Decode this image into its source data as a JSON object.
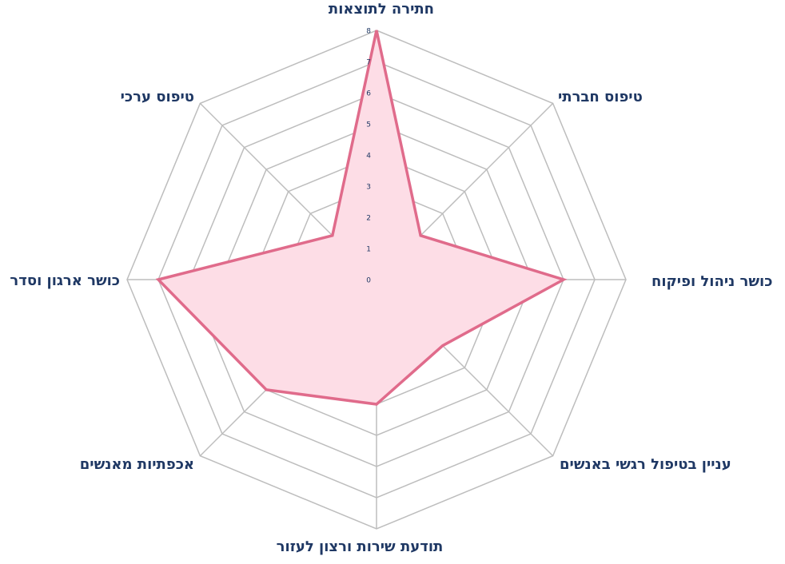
{
  "chart_data": {
    "type": "radar",
    "categories": [
      "חתירה לתוצאות",
      "טיפוס חברתי",
      "כושר ניהול ופיקוח",
      "עניין בטיפול רגשי באנשים",
      "תודעת שירות ורצון לעזור",
      "אכפתיות מאנשים",
      "כושר ארגון וסדר",
      "טיפוס ערכי"
    ],
    "values": [
      8,
      2,
      6,
      3,
      4,
      5,
      7,
      2
    ],
    "color": "#e06b8b",
    "fill": "#fddde6",
    "rlim": [
      0,
      8
    ],
    "rticks": [
      0,
      1,
      2,
      3,
      4,
      5,
      6,
      7,
      8
    ],
    "grid": true
  }
}
